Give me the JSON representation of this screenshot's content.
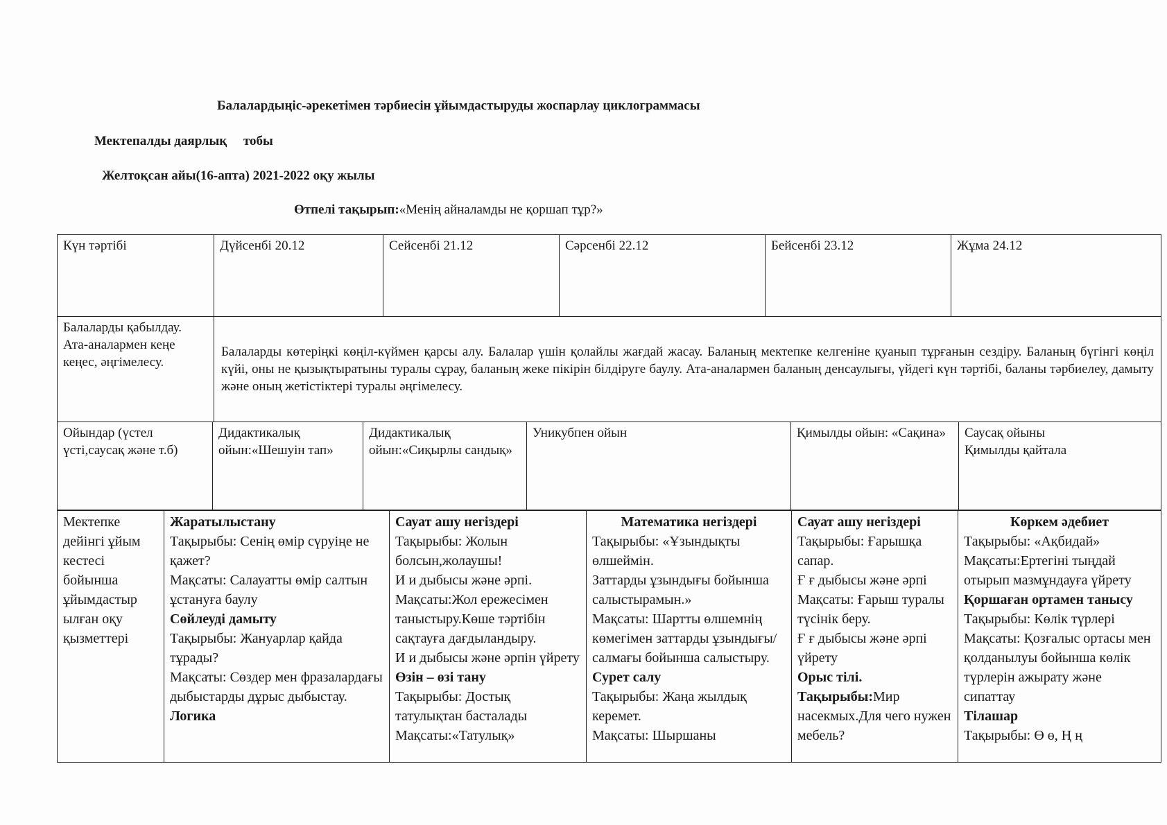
{
  "header": {
    "title": "Балалардыңіс-әрекетімен тәрбиесін ұйымдастыруды жоспарлау циклограммасы",
    "group": "Мектепалды даярлық     тобы",
    "period": "Желтоқсан айы(16-апта) 2021-2022 оқу жылы",
    "theme_label": "Өтпелі  тақырып:",
    "theme_value": "«Менің айналамды не қоршап тұр?»"
  },
  "table": {
    "header_row": [
      "Күн тәртібі",
      "Дүйсенбі 20.12",
      "Сейсенбі 21.12",
      "Сәрсенбі 22.12",
      "Бейсенбі 23.12",
      "Жұма 24.12"
    ],
    "reception": {
      "label": "Балаларды қабылдау. Ата-аналармен  кеңе кеңес, әңгімелесу.",
      "text": "Балаларды көтеріңкі көңіл-күймен қарсы алу. Балалар үшін қолайлы жағдай жасау. Баланың мектепке келгеніне қуанып тұрғанын сездіру. Баланың бүгінгі көңіл күйі, оны не қызықтыратыны туралы сұрау, баланың жеке пікірін білдіруге баулу. Ата-аналармен баланың денсаулығы, үйдегі күн тәртібі, баланы тәрбиелеу, дамыту және оның жетістіктері туралы әңгімелесу."
    },
    "games": [
      "Ойындар (үстел үсті,саусақ және т.б)",
      "Дидактикалық ойын:«Шешуін тап»",
      "Дидактикалық ойын:«Сиқырлы сандық»",
      "Уникубпен ойын",
      "Қимылды ойын: «Сақина»",
      "Саусақ ойыны\nҚимылды қайтала"
    ],
    "activities_label": "Мектепке дейінгі ұйым кестесі бойынша ұйымдастыр ылған оқу қызметтері",
    "activities": [
      [
        {
          "h": "Жаратылыстану"
        },
        {
          "t": "Тақырыбы: Сенің өмір сүруіңе не қажет?"
        },
        {
          "t": " Мақсаты: Салауатты өмір салтын ұстануға баулу"
        },
        {
          "h": "Сөйлеуді дамыту"
        },
        {
          "t": "Тақырыбы: Жануарлар қайда тұрады?"
        },
        {
          "t": "Мақсаты: Сөздер мен фразалардағы  дыбыстарды дұрыс дыбыстау."
        },
        {
          "h": "Логика"
        }
      ],
      [
        {
          "h": "Сауат ашу негіздері"
        },
        {
          "t": "Тақырыбы: Жолын болсын,жолаушы!"
        },
        {
          "t": "И и дыбысы және әрпі."
        },
        {
          "t": "Мақсаты:Жол ережесімен таныстыру.Көше тәртібін сақтауға дағдыландыру."
        },
        {
          "t": "И и дыбысы және әрпін үйрету"
        },
        {
          "h": "Өзін – өзі тану"
        },
        {
          "t": "Тақырыбы: Достық татулықтан басталады"
        },
        {
          "t": "Мақсаты:«Татулық»"
        }
      ],
      [
        {
          "h": "Математика негіздері",
          "center": true
        },
        {
          "t": " Тақырыбы: «Ұзындықты өлшеймін."
        },
        {
          "t": "Заттарды ұзындығы бойынша салыстырамын.»"
        },
        {
          "t": " Мақсаты: Шартты өлшемнің көмегімен заттарды ұзындығы/салмағы бойынша салыстыру."
        },
        {
          "h": "Сурет салу"
        },
        {
          "t": "Тақырыбы: Жаңа жылдық керемет."
        },
        {
          "t": " Мақсаты: Шыршаны"
        }
      ],
      [
        {
          "h": "Сауат ашу негіздері"
        },
        {
          "t": "Тақырыбы: Ғарышқа сапар."
        },
        {
          "t": "Ғ ғ дыбысы және әрпі"
        },
        {
          "t": "Мақсаты: Ғарыш туралы түсінік беру."
        },
        {
          "t": "Ғ ғ дыбысы және әрпі үйрету"
        },
        {
          "h": "Орыс тілі."
        },
        {
          "h": "Тақырыбы:",
          "t": "Мир насекмых.Для чего нужен мебель?"
        }
      ],
      [
        {
          "h": "Көркем әдебиет",
          "center": true
        },
        {
          "t": "Тақырыбы: «Ақбидай»"
        },
        {
          "t": "Мақсаты:Ертегіні тыңдай отырып мазмұндауға үйрету"
        },
        {
          "h": "Қоршаған ортамен танысу"
        },
        {
          "t": "Тақырыбы: Көлік түрлері"
        },
        {
          "t": "Мақсаты: Қозғалыс ортасы мен қолданылуы бойынша көлік түрлерін ажырату және сипаттау"
        },
        {
          "h": "Тілашар"
        },
        {
          "t": "Тақырыбы: Ө ө, Ң ң"
        }
      ]
    ]
  }
}
